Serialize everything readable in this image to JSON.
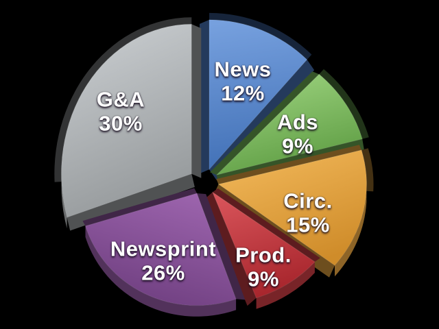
{
  "chart_data": {
    "type": "pie",
    "style": "3d-exploded",
    "background": "#000000",
    "label_color": "#ffffff",
    "legend": "none",
    "labels_on_slices": true,
    "start_angle_deg": -90,
    "direction": "clockwise",
    "total_percent": 101,
    "slices": [
      {
        "label": "News",
        "value": 12,
        "pct_text": "12%",
        "color": "#4a79c0",
        "color_light": "#76a0de",
        "color_dark": "#4170b6"
      },
      {
        "label": "Ads",
        "value": 9,
        "pct_text": "9%",
        "color": "#6fae53",
        "color_light": "#9ed480",
        "color_dark": "#5d9c42"
      },
      {
        "label": "Circ.",
        "value": 15,
        "pct_text": "15%",
        "color": "#e3a23f",
        "color_light": "#f2b85a",
        "color_dark": "#cf8c2a"
      },
      {
        "label": "Prod.",
        "value": 9,
        "pct_text": "9%",
        "color": "#c23a41",
        "color_light": "#d9555b",
        "color_dark": "#a8262d"
      },
      {
        "label": "Newsprint",
        "value": 26,
        "pct_text": "26%",
        "color": "#855093",
        "color_light": "#9c64ad",
        "color_dark": "#6e3e7f"
      },
      {
        "label": "G&A",
        "value": 30,
        "pct_text": "30%",
        "color": "#a7abad",
        "color_light": "#c9cdd0",
        "color_dark": "#94989a"
      }
    ]
  }
}
